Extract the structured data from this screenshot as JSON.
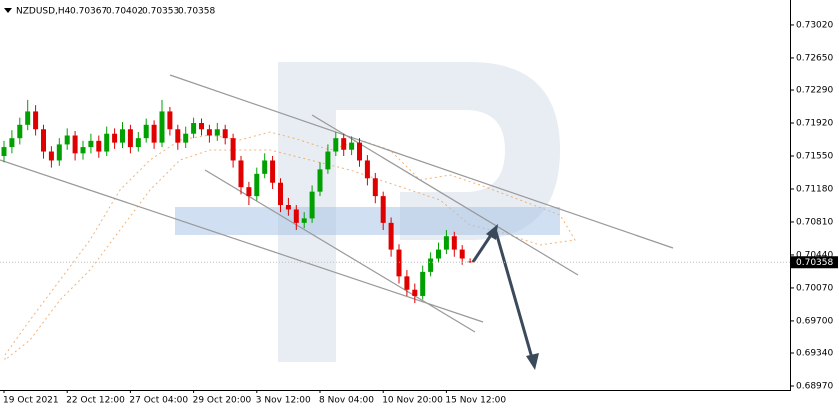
{
  "chart_data": {
    "type": "candlestick",
    "symbol": "NZDUSD,H4",
    "categories": [
      "19 Oct 2021",
      null,
      null,
      null,
      null,
      null,
      null,
      null,
      "22 Oct 12:00",
      null,
      null,
      null,
      null,
      null,
      null,
      null,
      "27 Oct 04:00",
      null,
      null,
      null,
      null,
      null,
      null,
      null,
      "29 Oct 20:00",
      null,
      null,
      null,
      null,
      null,
      null,
      null,
      "3 Nov 12:00",
      null,
      null,
      null,
      null,
      null,
      null,
      null,
      "8 Nov 04:00",
      null,
      null,
      null,
      null,
      null,
      null,
      null,
      "10 Nov 20:00",
      null,
      null,
      null,
      null,
      null,
      null,
      null,
      "15 Nov 12:00",
      null,
      null,
      null
    ],
    "open": [
      0.7155,
      0.7165,
      0.7175,
      0.719,
      0.7205,
      0.7185,
      0.716,
      0.715,
      0.7168,
      0.7178,
      0.7158,
      0.7165,
      0.7172,
      0.716,
      0.718,
      0.717,
      0.7185,
      0.7165,
      0.7175,
      0.719,
      0.717,
      0.7205,
      0.7185,
      0.717,
      0.718,
      0.7192,
      0.7185,
      0.7178,
      0.7185,
      0.7175,
      0.715,
      0.712,
      0.711,
      0.7135,
      0.715,
      0.7125,
      0.71,
      0.7095,
      0.708,
      0.7085,
      0.7115,
      0.714,
      0.716,
      0.7175,
      0.7162,
      0.717,
      0.715,
      0.713,
      0.711,
      0.708,
      0.705,
      0.702,
      0.7005,
      0.6998,
      0.7025,
      0.704,
      0.705,
      0.7065,
      0.705,
      0.70367
    ],
    "high": [
      0.7172,
      0.7184,
      0.7198,
      0.7218,
      0.7212,
      0.719,
      0.7166,
      0.7175,
      0.7186,
      0.7183,
      0.7172,
      0.718,
      0.7178,
      0.7188,
      0.7186,
      0.7193,
      0.719,
      0.7182,
      0.7197,
      0.7195,
      0.7218,
      0.721,
      0.719,
      0.7188,
      0.7198,
      0.7197,
      0.719,
      0.7192,
      0.719,
      0.718,
      0.7155,
      0.7126,
      0.7142,
      0.7158,
      0.7155,
      0.713,
      0.7108,
      0.71,
      0.7092,
      0.7122,
      0.7148,
      0.7168,
      0.7182,
      0.718,
      0.7177,
      0.7175,
      0.7156,
      0.7136,
      0.7115,
      0.7086,
      0.7056,
      0.7027,
      0.7012,
      0.7032,
      0.7047,
      0.7058,
      0.7072,
      0.707,
      0.7055,
      0.70402
    ],
    "low": [
      0.7148,
      0.7158,
      0.7168,
      0.7184,
      0.7178,
      0.7152,
      0.7142,
      0.7144,
      0.7162,
      0.715,
      0.7151,
      0.7158,
      0.7153,
      0.7155,
      0.7163,
      0.7164,
      0.7158,
      0.716,
      0.717,
      0.7163,
      0.7165,
      0.7178,
      0.7162,
      0.7164,
      0.7175,
      0.7178,
      0.717,
      0.7172,
      0.7168,
      0.7142,
      0.7112,
      0.71,
      0.7105,
      0.713,
      0.7118,
      0.7092,
      0.7088,
      0.7072,
      0.7074,
      0.708,
      0.711,
      0.7135,
      0.7155,
      0.7155,
      0.7156,
      0.7143,
      0.7122,
      0.7102,
      0.7072,
      0.7042,
      0.7012,
      0.6998,
      0.699,
      0.6994,
      0.702,
      0.7035,
      0.7045,
      0.7042,
      0.7033,
      0.70353
    ],
    "close": [
      0.7165,
      0.7175,
      0.719,
      0.7205,
      0.7185,
      0.716,
      0.715,
      0.7168,
      0.7178,
      0.7158,
      0.7165,
      0.7172,
      0.716,
      0.718,
      0.717,
      0.7185,
      0.7165,
      0.7175,
      0.719,
      0.717,
      0.7205,
      0.7185,
      0.717,
      0.718,
      0.7192,
      0.7185,
      0.7178,
      0.7185,
      0.7175,
      0.715,
      0.712,
      0.711,
      0.7135,
      0.715,
      0.7125,
      0.71,
      0.7095,
      0.708,
      0.7085,
      0.7115,
      0.714,
      0.716,
      0.7175,
      0.7162,
      0.717,
      0.715,
      0.713,
      0.711,
      0.708,
      0.705,
      0.702,
      0.7005,
      0.6998,
      0.7025,
      0.704,
      0.705,
      0.7065,
      0.705,
      0.704,
      0.70358
    ],
    "up_color": "#00a000",
    "down_color": "#e00000",
    "ylim": [
      0.68925,
      0.733
    ],
    "yticks": [
      {
        "value": 0.7302,
        "label": "0.73020"
      },
      {
        "value": 0.7265,
        "label": "0.72650"
      },
      {
        "value": 0.7229,
        "label": "0.72290"
      },
      {
        "value": 0.7192,
        "label": "0.71920"
      },
      {
        "value": 0.7155,
        "label": "0.71550"
      },
      {
        "value": 0.7118,
        "label": "0.71180"
      },
      {
        "value": 0.7081,
        "label": "0.70810"
      },
      {
        "value": 0.7044,
        "label": "0.70440"
      },
      {
        "value": 0.7007,
        "label": "0.70070"
      },
      {
        "value": 0.697,
        "label": "0.69700"
      },
      {
        "value": 0.6934,
        "label": "0.69340"
      },
      {
        "value": 0.6897,
        "label": "0.68970"
      }
    ]
  }
}
